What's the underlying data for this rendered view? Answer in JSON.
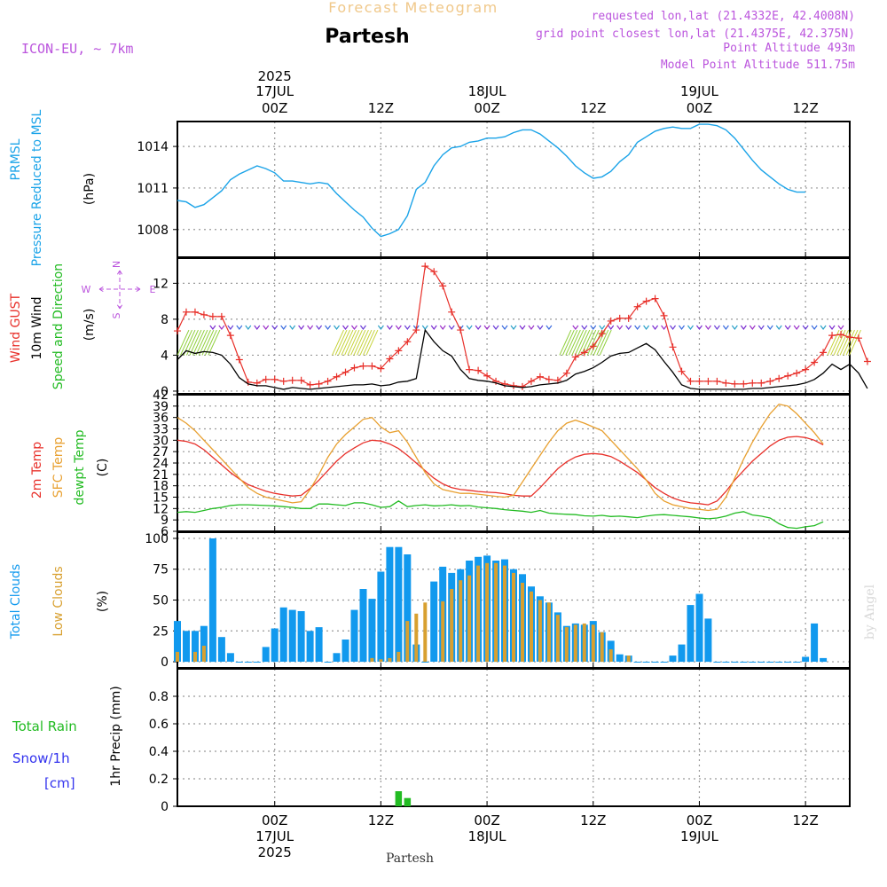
{
  "header": {
    "super_title": "Forecast Meteogram",
    "station": "Partesh",
    "model": "ICON-EU, ~ 7km",
    "requested": "requested lon,lat (21.4332E, 42.4008N)",
    "closest": "grid point closest lon,lat (21.4375E, 42.375N)",
    "point_altitude": "Point Altitude 493m",
    "model_altitude": "Model Point Altitude 511.75m",
    "footer_station": "Partesh",
    "credit": "by Angel"
  },
  "time_axis": {
    "year": "2025",
    "top_ticks": [
      {
        "h": 21,
        "label": "00Z",
        "date": "17JUL",
        "year": "2025"
      },
      {
        "h": 33,
        "label": "12Z"
      },
      {
        "h": 45,
        "label": "00Z",
        "date": "18JUL"
      },
      {
        "h": 57,
        "label": "12Z"
      },
      {
        "h": 69,
        "label": "00Z",
        "date": "19JUL"
      },
      {
        "h": 81,
        "label": "12Z"
      }
    ],
    "start_hour": 10,
    "end_hour": 86
  },
  "chart_data": [
    {
      "type": "line",
      "panel": "pressure",
      "label_lines": [
        "PRMSL",
        "Pressure Reduced to MSL"
      ],
      "unit": "(hPa)",
      "colors": {
        "prmsl": "#1aa3e8"
      },
      "ylim": [
        1006,
        1015.8
      ],
      "yticks": [
        1008,
        1011,
        1014
      ],
      "series": [
        {
          "name": "PRMSL",
          "x_hours_start": 10,
          "values": [
            1010.1,
            1010.0,
            1009.6,
            1009.8,
            1010.3,
            1010.8,
            1011.6,
            1012.0,
            1012.3,
            1012.6,
            1012.4,
            1012.1,
            1011.5,
            1011.5,
            1011.4,
            1011.3,
            1011.4,
            1011.3,
            1010.6,
            1010.0,
            1009.4,
            1008.9,
            1008.1,
            1007.5,
            1007.7,
            1008.0,
            1009.0,
            1010.9,
            1011.4,
            1012.6,
            1013.4,
            1013.9,
            1014.0,
            1014.3,
            1014.4,
            1014.6,
            1014.6,
            1014.7,
            1015.0,
            1015.2,
            1015.2,
            1014.9,
            1014.4,
            1013.9,
            1013.3,
            1012.6,
            1012.1,
            1011.7,
            1011.8,
            1012.2,
            1012.9,
            1013.4,
            1014.3,
            1014.7,
            1015.1,
            1015.3,
            1015.4,
            1015.3,
            1015.3,
            1015.6,
            1015.6,
            1015.5,
            1015.2,
            1014.6,
            1013.8,
            1013.0,
            1012.3,
            1011.8,
            1011.3,
            1010.9,
            1010.7,
            1010.7
          ]
        }
      ]
    },
    {
      "type": "line",
      "panel": "wind",
      "label_lines": [
        "Wind GUST",
        "10m Wind",
        "Speed and Direction"
      ],
      "unit": "(m/s)",
      "compass": {
        "w": "W",
        "e": "E",
        "n": "N",
        "s": "S"
      },
      "colors": {
        "gust": "#e8302a",
        "wind": "#000000",
        "direction": "#22bb22"
      },
      "ylim": [
        -0.3,
        14.8
      ],
      "yticks": [
        0,
        4,
        8,
        12
      ],
      "series": [
        {
          "name": "Wind GUST",
          "x_hours_start": 10,
          "values": [
            6.7,
            8.8,
            8.8,
            8.5,
            8.3,
            8.3,
            6.2,
            3.5,
            1.0,
            0.9,
            1.3,
            1.3,
            1.1,
            1.2,
            1.2,
            0.7,
            0.8,
            1.1,
            1.6,
            2.1,
            2.6,
            2.8,
            2.8,
            2.5,
            3.6,
            4.5,
            5.5,
            6.8,
            13.9,
            13.3,
            11.7,
            8.8,
            6.8,
            2.4,
            2.3,
            1.7,
            1.1,
            0.8,
            0.6,
            0.5,
            1.1,
            1.6,
            1.3,
            1.2,
            2.0,
            3.8,
            4.3,
            5.0,
            6.4,
            7.8,
            8.1,
            8.1,
            9.4,
            10.0,
            10.3,
            8.4,
            4.9,
            2.2,
            1.1,
            1.1,
            1.1,
            1.1,
            0.9,
            0.8,
            0.8,
            0.9,
            0.9,
            1.1,
            1.4,
            1.7,
            2.0,
            2.4,
            3.2,
            4.3,
            6.2,
            6.3,
            6.0,
            5.9,
            3.3
          ]
        },
        {
          "name": "10m Wind",
          "x_hours_start": 10,
          "values": [
            3.5,
            4.5,
            4.2,
            4.4,
            4.3,
            4.0,
            3.0,
            1.5,
            0.8,
            0.6,
            0.6,
            0.4,
            0.2,
            0.4,
            0.3,
            0.2,
            0.3,
            0.4,
            0.5,
            0.6,
            0.7,
            0.7,
            0.8,
            0.6,
            0.7,
            1.0,
            1.1,
            1.4,
            6.8,
            5.5,
            4.5,
            3.9,
            2.4,
            1.4,
            1.2,
            1.1,
            0.9,
            0.6,
            0.5,
            0.4,
            0.5,
            0.7,
            0.8,
            0.9,
            1.2,
            1.9,
            2.2,
            2.6,
            3.2,
            3.9,
            4.2,
            4.3,
            4.8,
            5.3,
            4.6,
            3.3,
            2.1,
            0.7,
            0.3,
            0.2,
            0.2,
            0.2,
            0.2,
            0.2,
            0.2,
            0.3,
            0.3,
            0.4,
            0.5,
            0.6,
            0.7,
            0.9,
            1.3,
            2.0,
            3.0,
            2.4,
            3.0,
            2.0,
            0.3
          ]
        }
      ]
    },
    {
      "type": "line",
      "panel": "temperature",
      "label_lines": [
        "2m Temp",
        "SFC Temp",
        "dewpt Temp"
      ],
      "unit": "(C)",
      "colors": {
        "t2m": "#e8302a",
        "tsfc": "#e8a030",
        "dewpt": "#22bb22"
      },
      "ylim": [
        6,
        42
      ],
      "yticks": [
        6,
        9,
        12,
        15,
        18,
        21,
        24,
        27,
        30,
        33,
        36,
        39,
        42
      ],
      "series": [
        {
          "name": "2m Temp",
          "x_hours_start": 10,
          "values": [
            30.0,
            29.7,
            29.0,
            27.5,
            25.5,
            23.5,
            21.5,
            19.8,
            18.3,
            17.4,
            16.6,
            16.0,
            15.6,
            15.3,
            15.5,
            17.3,
            19.5,
            22.0,
            24.5,
            26.5,
            28.0,
            29.3,
            30.0,
            29.8,
            29.0,
            27.8,
            26.0,
            24.0,
            22.0,
            20.0,
            18.5,
            17.5,
            17.0,
            16.8,
            16.5,
            16.3,
            16.2,
            15.9,
            15.5,
            15.3,
            15.3,
            17.5,
            20.0,
            22.5,
            24.3,
            25.6,
            26.3,
            26.5,
            26.3,
            25.7,
            24.5,
            23.0,
            21.5,
            19.5,
            17.5,
            16.0,
            14.8,
            14.0,
            13.5,
            13.3,
            13.0,
            14.0,
            16.5,
            19.5,
            22.0,
            24.5,
            26.5,
            28.5,
            30.0,
            30.8,
            31.0,
            30.7,
            30.0,
            28.8
          ]
        },
        {
          "name": "SFC Temp",
          "x_hours_start": 10,
          "values": [
            36.0,
            34.5,
            32.5,
            30.0,
            27.5,
            25.0,
            22.5,
            20.0,
            17.5,
            16.0,
            15.0,
            14.5,
            14.0,
            13.5,
            13.8,
            17.0,
            21.0,
            25.5,
            29.0,
            31.5,
            33.5,
            35.5,
            36.0,
            33.5,
            32.0,
            32.5,
            29.5,
            25.5,
            21.5,
            18.5,
            17.0,
            16.5,
            16.0,
            16.0,
            15.8,
            15.5,
            15.2,
            15.0,
            15.5,
            19.0,
            22.5,
            26.0,
            29.5,
            32.5,
            34.5,
            35.3,
            34.5,
            33.5,
            32.5,
            30.0,
            27.5,
            25.0,
            22.5,
            19.5,
            16.0,
            14.0,
            13.0,
            12.5,
            12.0,
            11.8,
            11.5,
            11.8,
            15.0,
            20.0,
            25.0,
            29.5,
            33.5,
            37.0,
            39.5,
            39.0,
            37.0,
            34.5,
            32.0,
            29.0
          ]
        },
        {
          "name": "dewpt Temp",
          "x_hours_start": 10,
          "values": [
            11.0,
            11.2,
            11.0,
            11.5,
            12.0,
            12.3,
            12.8,
            13.0,
            13.0,
            12.9,
            12.8,
            12.7,
            12.5,
            12.3,
            12.0,
            12.0,
            13.2,
            13.2,
            13.0,
            12.8,
            13.5,
            13.5,
            13.0,
            12.3,
            12.5,
            14.0,
            12.5,
            12.8,
            13.0,
            12.7,
            12.8,
            13.0,
            12.7,
            12.8,
            12.4,
            12.2,
            12.0,
            11.7,
            11.5,
            11.3,
            11.0,
            11.5,
            10.8,
            10.6,
            10.5,
            10.4,
            10.1,
            10.0,
            10.2,
            9.9,
            10.0,
            9.8,
            9.6,
            10.0,
            10.3,
            10.4,
            10.2,
            10.0,
            9.8,
            9.5,
            9.3,
            9.5,
            10.0,
            10.8,
            11.2,
            10.3,
            10.0,
            9.5,
            8.0,
            7.0,
            6.8,
            7.2,
            7.5,
            8.5
          ]
        }
      ]
    },
    {
      "type": "bar",
      "panel": "clouds",
      "label_lines": [
        "Total Clouds",
        "Low Clouds"
      ],
      "unit": "(%)",
      "colors": {
        "total": "#1199ee",
        "low": "#d8a030"
      },
      "ylim": [
        -5,
        105
      ],
      "yticks": [
        0,
        25,
        50,
        75,
        100
      ],
      "series": [
        {
          "name": "Total Clouds",
          "x_hours_start": 10,
          "values": [
            33,
            25,
            25,
            29,
            100,
            20,
            7,
            0,
            0,
            0,
            12,
            27,
            44,
            42,
            41,
            25,
            28,
            0,
            7,
            18,
            42,
            59,
            51,
            73,
            93,
            93,
            87,
            14,
            0,
            65,
            77,
            72,
            75,
            82,
            85,
            86,
            82,
            83,
            75,
            71,
            61,
            53,
            48,
            40,
            29,
            31,
            30,
            33,
            24,
            17,
            6,
            5,
            0,
            0,
            0,
            0,
            5,
            14,
            46,
            55,
            35,
            0,
            0,
            0,
            0,
            0,
            0,
            0,
            0,
            0,
            0,
            4,
            31,
            3
          ]
        },
        {
          "name": "Low Clouds",
          "x_hours_start": 10,
          "values": [
            8,
            0,
            8,
            13,
            0,
            0,
            0,
            0,
            0,
            0,
            0,
            0,
            0,
            0,
            0,
            0,
            0,
            0,
            0,
            0,
            0,
            0,
            3,
            2,
            3,
            8,
            33,
            39,
            48,
            0,
            49,
            59,
            66,
            70,
            78,
            80,
            80,
            78,
            72,
            64,
            57,
            50,
            48,
            38,
            28,
            30,
            31,
            30,
            24,
            10,
            0,
            5,
            0,
            0,
            0,
            0,
            0,
            0,
            0,
            0,
            0,
            0,
            0,
            0,
            0,
            0,
            0,
            0,
            0,
            0,
            0,
            0,
            0,
            0
          ]
        }
      ]
    },
    {
      "type": "bar",
      "panel": "precip",
      "label_lines": [
        "Total  Rain",
        "Snow/1h",
        "[cm]"
      ],
      "unit": "1hr Precip (mm)",
      "colors": {
        "rain": "#22bb22",
        "snow": "#3333ee"
      },
      "ylim": [
        0,
        1.0
      ],
      "yticks": [
        0,
        0.2,
        0.4,
        0.6,
        0.8
      ],
      "ytick_labels": [
        "0",
        "0.2",
        "0.4",
        "0.6",
        "0.8"
      ],
      "series": [
        {
          "name": "Total  Rain",
          "points": [
            {
              "hour": 35,
              "value": 0.11
            },
            {
              "hour": 36,
              "value": 0.06
            }
          ]
        }
      ]
    }
  ],
  "colors": {
    "title_orange": "#f0c88a",
    "station_black": "#000000",
    "purple": "#bb55dd",
    "grid": "#999999",
    "frame": "#000000"
  }
}
